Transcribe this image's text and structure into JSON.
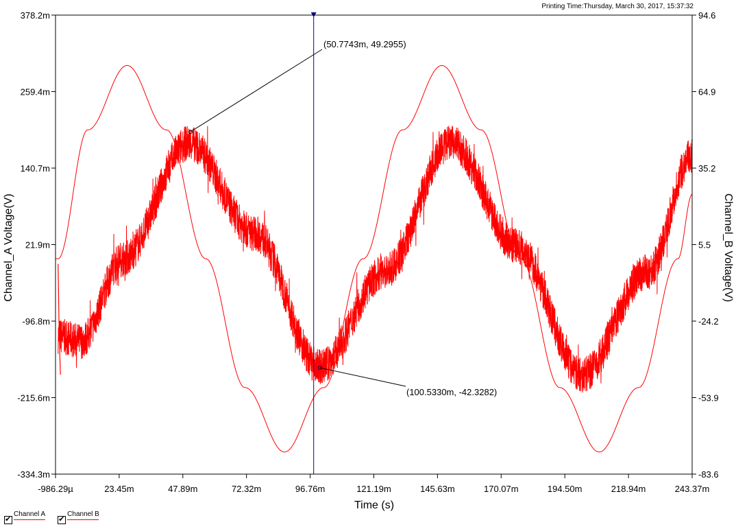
{
  "print_time": "Printing Time:Thursday, March 30, 2017, 15:37:32",
  "colors": {
    "channel_a": "#ff0000",
    "channel_b": "#ff0000",
    "cursor": "#00008b"
  },
  "legend": [
    {
      "label": "Channel A",
      "checked": true
    },
    {
      "label": "Channel B",
      "checked": true
    }
  ],
  "chart_data": {
    "type": "line",
    "title": "",
    "xlabel": "Time (s)",
    "ylabel_left": "Channel_A Voltage(V)",
    "ylabel_right": "Channel_B Voltage(V)",
    "xlim": [
      -0.00098629,
      0.24337
    ],
    "ylim_left": [
      -0.3343,
      0.3782
    ],
    "ylim_right": [
      -83.6,
      94.6
    ],
    "x_tick_labels": [
      "-986.29µ",
      "23.45m",
      "47.89m",
      "72.32m",
      "96.76m",
      "121.19m",
      "145.63m",
      "170.07m",
      "194.50m",
      "218.94m",
      "243.37m"
    ],
    "y_left_tick_labels": [
      "378.2m",
      "259.4m",
      "140.7m",
      "21.9m",
      "-96.8m",
      "-215.6m",
      "-334.3m"
    ],
    "y_right_tick_labels": [
      "94.6",
      "64.9",
      "35.2",
      "5.5",
      "-24.2",
      "-53.9",
      "-83.6"
    ],
    "grid": false,
    "series": [
      {
        "name": "Channel A",
        "axis": "left",
        "style": "thin sine",
        "x": [
          0.0,
          0.0114,
          0.0265,
          0.0416,
          0.0567,
          0.0718,
          0.0869,
          0.102,
          0.1171,
          0.1322,
          0.1473,
          0.1624,
          0.1775,
          0.1926,
          0.2077,
          0.2228,
          0.2379,
          0.2434
        ],
        "y": [
          0.0,
          0.2,
          0.3,
          0.2,
          0.0,
          -0.2,
          -0.3,
          -0.2,
          0.0,
          0.2,
          0.3,
          0.2,
          0.0,
          -0.2,
          -0.3,
          -0.2,
          0.0,
          0.1
        ]
      },
      {
        "name": "Channel B",
        "axis": "right",
        "style": "noisy sine",
        "x": [
          0.0,
          0.0087,
          0.0249,
          0.0501,
          0.0753,
          0.1004,
          0.1256,
          0.1508,
          0.176,
          0.2012,
          0.2264,
          0.2434
        ],
        "y": [
          -30.0,
          -32.0,
          0.0,
          45.0,
          10.0,
          -42.0,
          -5.0,
          45.0,
          5.0,
          -45.0,
          -5.0,
          40.0
        ]
      }
    ],
    "cursor": {
      "x": 0.0981,
      "annotations": [
        {
          "text": "(50.7743m, 49.2955)",
          "x": 0.0508,
          "y": 49.2955
        },
        {
          "text": "(100.5330m, -42.3282)",
          "x": 0.1005,
          "y": -42.3282
        }
      ]
    }
  }
}
